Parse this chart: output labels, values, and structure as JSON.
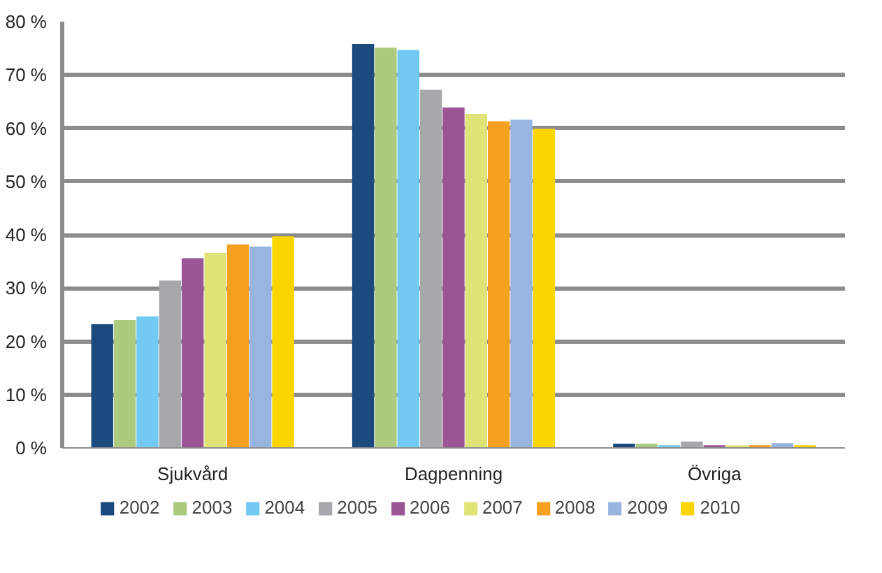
{
  "chart_data": {
    "type": "bar",
    "categories": [
      "Sjukvård",
      "Dagpenning",
      "Övriga"
    ],
    "series": [
      {
        "name": "2002",
        "color": "#1a4a7e",
        "values": [
          23.2,
          75.8,
          0.8
        ]
      },
      {
        "name": "2003",
        "color": "#adcb7e",
        "values": [
          24.0,
          75.1,
          0.8
        ]
      },
      {
        "name": "2004",
        "color": "#72c9f1",
        "values": [
          24.7,
          74.7,
          0.5
        ]
      },
      {
        "name": "2005",
        "color": "#a6a8ab",
        "values": [
          31.4,
          67.2,
          1.2
        ]
      },
      {
        "name": "2006",
        "color": "#9b5595",
        "values": [
          35.6,
          63.9,
          0.5
        ]
      },
      {
        "name": "2007",
        "color": "#dfe476",
        "values": [
          36.6,
          62.7,
          0.5
        ]
      },
      {
        "name": "2008",
        "color": "#f6a01f",
        "values": [
          38.2,
          61.3,
          0.5
        ]
      },
      {
        "name": "2009",
        "color": "#97b5de",
        "values": [
          37.8,
          61.6,
          0.9
        ]
      },
      {
        "name": "2010",
        "color": "#fbd500",
        "values": [
          39.7,
          59.9,
          0.5
        ]
      }
    ],
    "ylim": [
      0,
      80
    ],
    "yticks": [
      {
        "value": 0,
        "label": "0 %"
      },
      {
        "value": 10,
        "label": "10 %"
      },
      {
        "value": 20,
        "label": "20 %"
      },
      {
        "value": 30,
        "label": "30 %"
      },
      {
        "value": 40,
        "label": "40 %"
      },
      {
        "value": 50,
        "label": "50 %"
      },
      {
        "value": 60,
        "label": "60 %"
      },
      {
        "value": 70,
        "label": "70 %"
      },
      {
        "value": 80,
        "label": "80 %"
      }
    ],
    "grid": "y",
    "legend": "bottom"
  }
}
